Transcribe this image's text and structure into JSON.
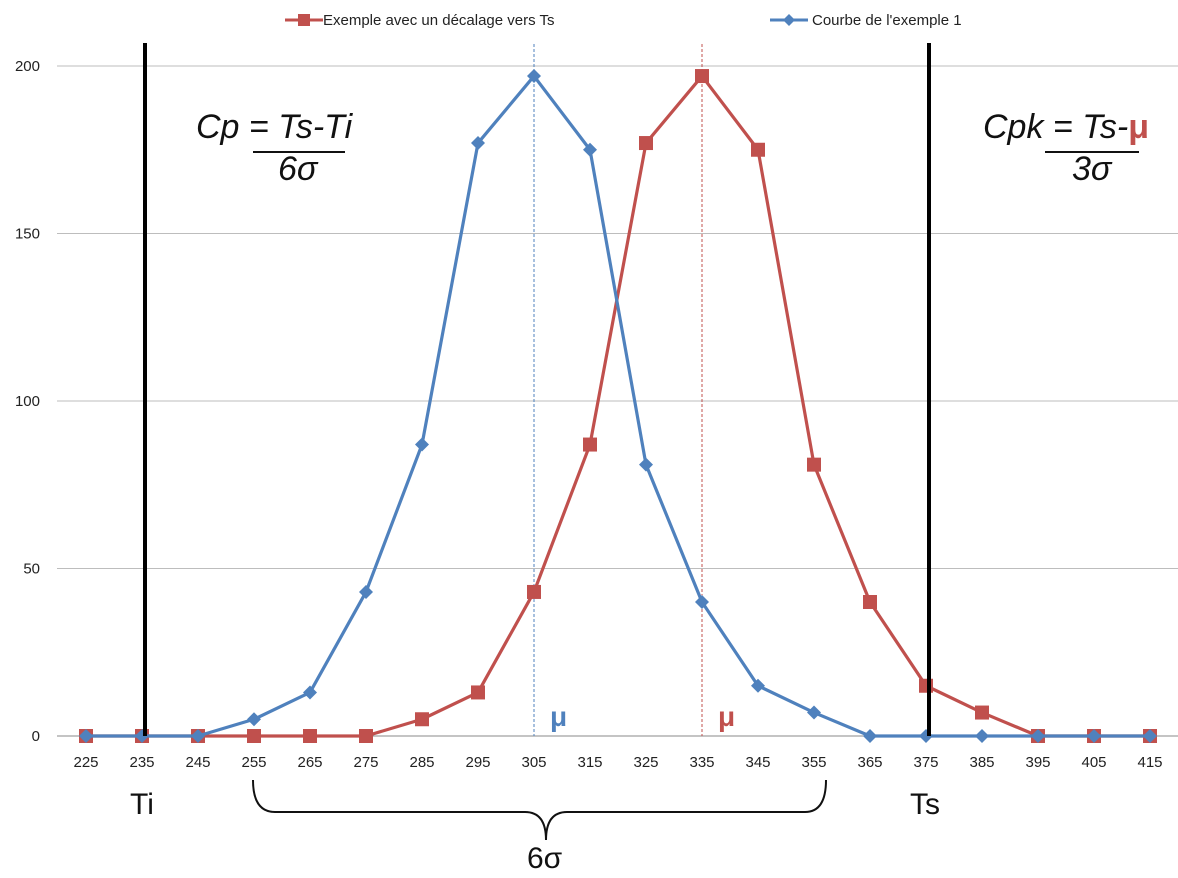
{
  "chart_data": {
    "type": "line",
    "title": "",
    "xlabel": "",
    "ylabel": "",
    "categories": [
      "225",
      "235",
      "245",
      "255",
      "265",
      "275",
      "285",
      "295",
      "305",
      "315",
      "325",
      "335",
      "345",
      "355",
      "365",
      "375",
      "385",
      "395",
      "405",
      "415"
    ],
    "ylim": [
      0,
      200
    ],
    "yticks": [
      "0",
      "50",
      "100",
      "150",
      "200"
    ],
    "grid": "horizontal",
    "legend_position": "top",
    "series": [
      {
        "name": "Exemple avec un décalage vers Ts",
        "color": "#c0504d",
        "marker": "square",
        "values": [
          0,
          0,
          0,
          0,
          0,
          0,
          5,
          13,
          43,
          87,
          177,
          197,
          175,
          81,
          40,
          15,
          7,
          0,
          0,
          0
        ]
      },
      {
        "name": "Courbe de l'exemple 1",
        "color": "#4f81bd",
        "marker": "diamond",
        "values": [
          0,
          0,
          0,
          5,
          13,
          43,
          87,
          177,
          197,
          175,
          81,
          40,
          15,
          7,
          0,
          0,
          0,
          0,
          0,
          0
        ]
      }
    ],
    "reference_lines": [
      {
        "label": "Ti",
        "x": "235",
        "color": "#000000"
      },
      {
        "label": "Ts",
        "x": "375",
        "color": "#000000"
      }
    ],
    "mean_lines": [
      {
        "label": "μ",
        "x": "305",
        "color": "#4f81bd"
      },
      {
        "label": "μ",
        "x": "335",
        "color": "#c0504d"
      }
    ],
    "annotations": {
      "cp_numerator": "Cp = Ts-Ti",
      "cp_denominator": "6σ",
      "cpk_numerator_a": "Cpk = Ts-",
      "cpk_numerator_b": "μ",
      "cpk_denominator": "3σ",
      "six_sigma": "6σ",
      "ti": "Ti",
      "ts": "Ts"
    }
  }
}
